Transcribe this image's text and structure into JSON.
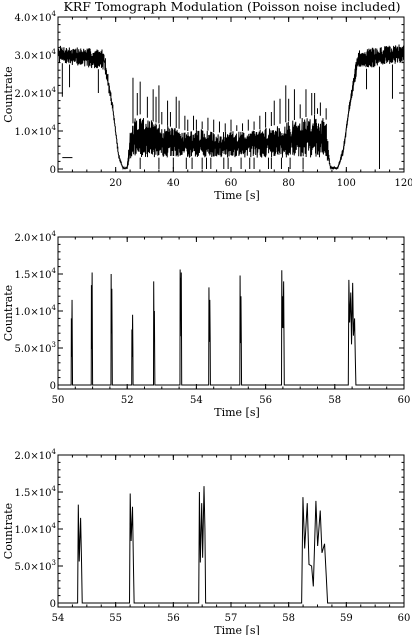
{
  "title": "KRF Tomograph Modulation (Poisson noise included)",
  "chart_data": [
    {
      "type": "line",
      "xlabel": "Time [s]",
      "ylabel": "Countrate",
      "xlim": [
        0,
        120
      ],
      "ylim": [
        0,
        40000
      ],
      "xticks": [
        20,
        40,
        60,
        80,
        100,
        120
      ],
      "yticks": [
        {
          "value": 0,
          "mant": "0",
          "exp": ""
        },
        {
          "value": 10000,
          "mant": "1.0×10",
          "exp": "4"
        },
        {
          "value": 20000,
          "mant": "2.0×10",
          "exp": "4"
        },
        {
          "value": 30000,
          "mant": "3.0×10",
          "exp": "4"
        },
        {
          "value": 40000,
          "mant": "4.0×10",
          "exp": "4"
        }
      ],
      "envelope": [
        [
          0,
          28000,
          32500
        ],
        [
          16,
          26000,
          31500
        ],
        [
          19,
          15000,
          17000
        ],
        [
          21,
          3000,
          4000
        ],
        [
          22.5,
          0,
          500
        ],
        [
          24,
          0,
          600
        ],
        [
          25,
          2500,
          10000
        ],
        [
          27,
          3000,
          14000
        ],
        [
          29,
          3000,
          14500
        ],
        [
          33,
          3000,
          12500
        ],
        [
          37,
          3000,
          11500
        ],
        [
          40,
          3000,
          11000
        ],
        [
          45,
          3000,
          10000
        ],
        [
          50,
          3000,
          10500
        ],
        [
          55,
          3000,
          9500
        ],
        [
          60,
          3000,
          10000
        ],
        [
          65,
          3000,
          10000
        ],
        [
          70,
          3000,
          10500
        ],
        [
          75,
          3000,
          11500
        ],
        [
          80,
          3000,
          12500
        ],
        [
          85,
          3000,
          13500
        ],
        [
          90,
          3000,
          14500
        ],
        [
          93,
          3000,
          13000
        ],
        [
          94.5,
          0,
          600
        ],
        [
          97,
          0,
          500
        ],
        [
          99,
          4000,
          6000
        ],
        [
          101,
          15000,
          17000
        ],
        [
          104,
          26000,
          31500
        ],
        [
          120,
          28000,
          33000
        ]
      ],
      "spikes": [
        [
          26,
          24000
        ],
        [
          27.5,
          20000
        ],
        [
          28.5,
          23000
        ],
        [
          31,
          19000
        ],
        [
          33,
          21000
        ],
        [
          34,
          19000
        ],
        [
          35,
          22000
        ],
        [
          36,
          15000
        ],
        [
          38,
          18000
        ],
        [
          39,
          15000
        ],
        [
          41,
          19000
        ],
        [
          42,
          18000
        ],
        [
          44,
          14000
        ],
        [
          45,
          13000
        ],
        [
          47,
          14000
        ],
        [
          48,
          13000
        ],
        [
          50,
          12500
        ],
        [
          52,
          13500
        ],
        [
          54,
          13000
        ],
        [
          56,
          12500
        ],
        [
          58,
          12000
        ],
        [
          60,
          13000
        ],
        [
          62,
          11500
        ],
        [
          64,
          12000
        ],
        [
          66,
          13000
        ],
        [
          68,
          12500
        ],
        [
          70,
          14000
        ],
        [
          72,
          15000
        ],
        [
          74,
          15000
        ],
        [
          75,
          18000
        ],
        [
          77,
          18500
        ],
        [
          79,
          22000
        ],
        [
          80,
          18500
        ],
        [
          82,
          21000
        ],
        [
          84,
          17000
        ],
        [
          86,
          21000
        ],
        [
          88,
          20000
        ],
        [
          89,
          20000
        ],
        [
          90,
          16000
        ],
        [
          91,
          17500
        ],
        [
          93,
          16000
        ]
      ],
      "dips": [
        [
          1.5,
          19000
        ],
        [
          4,
          21500
        ],
        [
          14,
          20000
        ],
        [
          107,
          21000
        ],
        [
          111.5,
          0
        ],
        [
          116,
          18500
        ]
      ],
      "dropouts": [
        28.5,
        35,
        40,
        44.5,
        46.5,
        50,
        51.5,
        53,
        57.5,
        59,
        63.5,
        66.5,
        68,
        73,
        74,
        77.5,
        80.5,
        85
      ],
      "marks": [
        {
          "x": 1.5,
          "x2": 5,
          "y": 3000
        }
      ]
    },
    {
      "type": "line",
      "xlabel": "Time [s]",
      "ylabel": "Countrate",
      "xlim": [
        50,
        60
      ],
      "ylim": [
        0,
        20000
      ],
      "xticks": [
        50,
        52,
        54,
        56,
        58,
        60
      ],
      "yticks": [
        {
          "value": 0,
          "mant": "0",
          "exp": ""
        },
        {
          "value": 5000,
          "mant": "5.0×10",
          "exp": "3"
        },
        {
          "value": 10000,
          "mant": "1.0×10",
          "exp": "4"
        },
        {
          "value": 15000,
          "mant": "1.5×10",
          "exp": "4"
        },
        {
          "value": 20000,
          "mant": "2.0×10",
          "exp": "4"
        }
      ],
      "peaks": [
        {
          "x": 50.4,
          "h": [
            9000,
            11500
          ],
          "w": 0.04
        },
        {
          "x": 50.98,
          "h": [
            13500,
            15200
          ],
          "w": 0.04
        },
        {
          "x": 51.55,
          "h": [
            15000,
            13000
          ],
          "w": 0.04
        },
        {
          "x": 52.15,
          "h": [
            7500,
            9500
          ],
          "w": 0.04
        },
        {
          "x": 52.78,
          "h": [
            14000,
            10000
          ],
          "w": 0.04
        },
        {
          "x": 53.55,
          "h": [
            15600,
            14500,
            15200
          ],
          "w": 0.05
        },
        {
          "x": 54.38,
          "h": [
            13200,
            11500
          ],
          "w": 0.05
        },
        {
          "x": 55.28,
          "h": [
            14800,
            12000
          ],
          "w": 0.05
        },
        {
          "x": 56.5,
          "h": [
            15500,
            12000,
            14000
          ],
          "w": 0.08
        },
        {
          "x": 58.5,
          "h": [
            14200,
            12500,
            13800,
            9000
          ],
          "w": 0.22
        }
      ]
    },
    {
      "type": "line",
      "xlabel": "Time [s]",
      "ylabel": "Countrate",
      "xlim": [
        54,
        60
      ],
      "ylim": [
        0,
        20000
      ],
      "xticks": [
        54,
        55,
        56,
        57,
        58,
        59,
        60
      ],
      "yticks": [
        {
          "value": 0,
          "mant": "0",
          "exp": ""
        },
        {
          "value": 5000,
          "mant": "5.0×10",
          "exp": "3"
        },
        {
          "value": 10000,
          "mant": "1.0×10",
          "exp": "4"
        },
        {
          "value": 15000,
          "mant": "1.5×10",
          "exp": "4"
        },
        {
          "value": 20000,
          "mant": "2.0×10",
          "exp": "4"
        }
      ],
      "peaks": [
        {
          "x": 54.38,
          "h": [
            13300,
            11500
          ],
          "w": 0.08
        },
        {
          "x": 55.28,
          "h": [
            14800,
            13000
          ],
          "w": 0.08
        },
        {
          "x": 56.5,
          "h": [
            15000,
            13500,
            15800
          ],
          "w": 0.12
        },
        {
          "x": 58.45,
          "h": [
            14300,
            13500,
            5000,
            13800,
            12500,
            8000
          ],
          "w": 0.45
        }
      ]
    }
  ]
}
